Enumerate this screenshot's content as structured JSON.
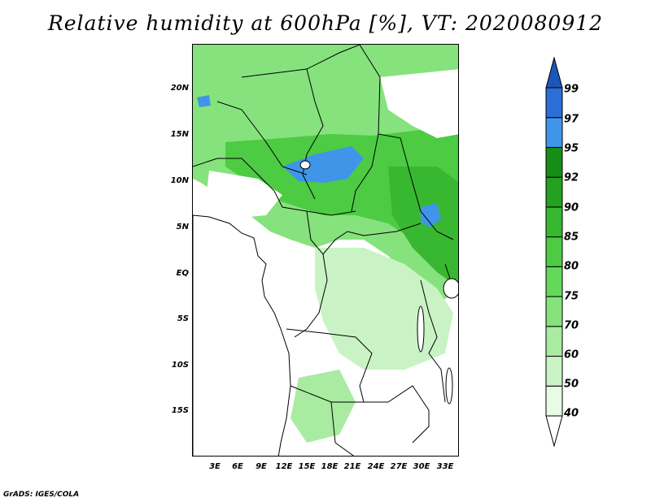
{
  "title": "Relative humidity at 600hPa [%], VT: 2020080912",
  "credit": "GrADS: IGES/COLA",
  "map": {
    "region": "Central Africa",
    "variable": "Relative humidity",
    "level": "600hPa",
    "units": "%",
    "valid_time": "2020080912",
    "lat_labels": [
      "20N",
      "15N",
      "10N",
      "5N",
      "EQ",
      "5S",
      "10S",
      "15S"
    ],
    "lon_labels": [
      "3E",
      "6E",
      "9E",
      "12E",
      "15E",
      "18E",
      "21E",
      "24E",
      "27E",
      "30E",
      "33E"
    ]
  },
  "colorbar": {
    "levels": [
      "40",
      "50",
      "60",
      "70",
      "75",
      "80",
      "85",
      "90",
      "92",
      "95",
      "97",
      "99"
    ],
    "colors": [
      "#ffffff",
      "#e7fbe6",
      "#c9f3c4",
      "#a8eba1",
      "#86e27d",
      "#64d85b",
      "#4ccb43",
      "#38b731",
      "#24a11f",
      "#178c16",
      "#4095e8",
      "#2a6ed6",
      "#1b57b8"
    ],
    "extend": "both"
  },
  "colors": {
    "background": "#ffffff",
    "border": "#000000",
    "moisture_max": "#2a6ed6"
  }
}
